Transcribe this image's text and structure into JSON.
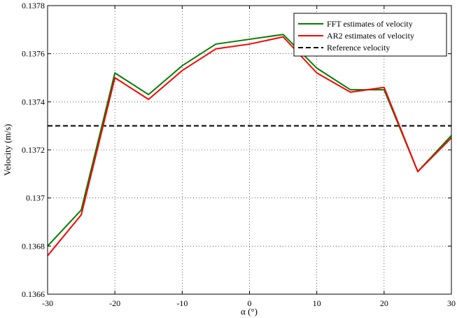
{
  "chart_data": {
    "type": "line",
    "title": "",
    "xlabel": "α (°)",
    "ylabel": "Velocity (m/s)",
    "xlim": [
      -30,
      30
    ],
    "ylim": [
      0.1366,
      0.1378
    ],
    "xticks": [
      -30,
      -20,
      -10,
      0,
      10,
      20,
      30
    ],
    "xtick_labels": [
      "-30",
      "-20",
      "-10",
      "0",
      "10",
      "20",
      "30"
    ],
    "yticks": [
      0.1366,
      0.1368,
      0.137,
      0.1372,
      0.1374,
      0.1376,
      0.1378
    ],
    "ytick_labels": [
      "0.1366",
      "0.1368",
      "0.137",
      "0.1372",
      "0.1374",
      "0.1376",
      "0.1378"
    ],
    "grid": true,
    "legend_position": "top-right",
    "x": [
      -30,
      -25,
      -20,
      -15,
      -10,
      -5,
      0,
      5,
      10,
      15,
      20,
      25,
      30
    ],
    "series": [
      {
        "name": "FFT estimates of velocity",
        "color": "#008000",
        "style": "solid",
        "values": [
          0.1368,
          0.13695,
          0.13752,
          0.13743,
          0.13755,
          0.13764,
          0.13766,
          0.13768,
          0.13754,
          0.13745,
          0.13745,
          0.13711,
          0.13726
        ]
      },
      {
        "name": "AR2 estimates of velocity",
        "color": "#ff0000",
        "style": "solid",
        "values": [
          0.13676,
          0.13693,
          0.1375,
          0.13741,
          0.13753,
          0.13762,
          0.13764,
          0.13767,
          0.13752,
          0.13744,
          0.13746,
          0.13711,
          0.13725
        ]
      },
      {
        "name": "Reference velocity",
        "color": "#000000",
        "style": "dashed",
        "values": [
          0.1373,
          0.1373,
          0.1373,
          0.1373,
          0.1373,
          0.1373,
          0.1373,
          0.1373,
          0.1373,
          0.1373,
          0.1373,
          0.1373,
          0.1373
        ]
      }
    ]
  }
}
